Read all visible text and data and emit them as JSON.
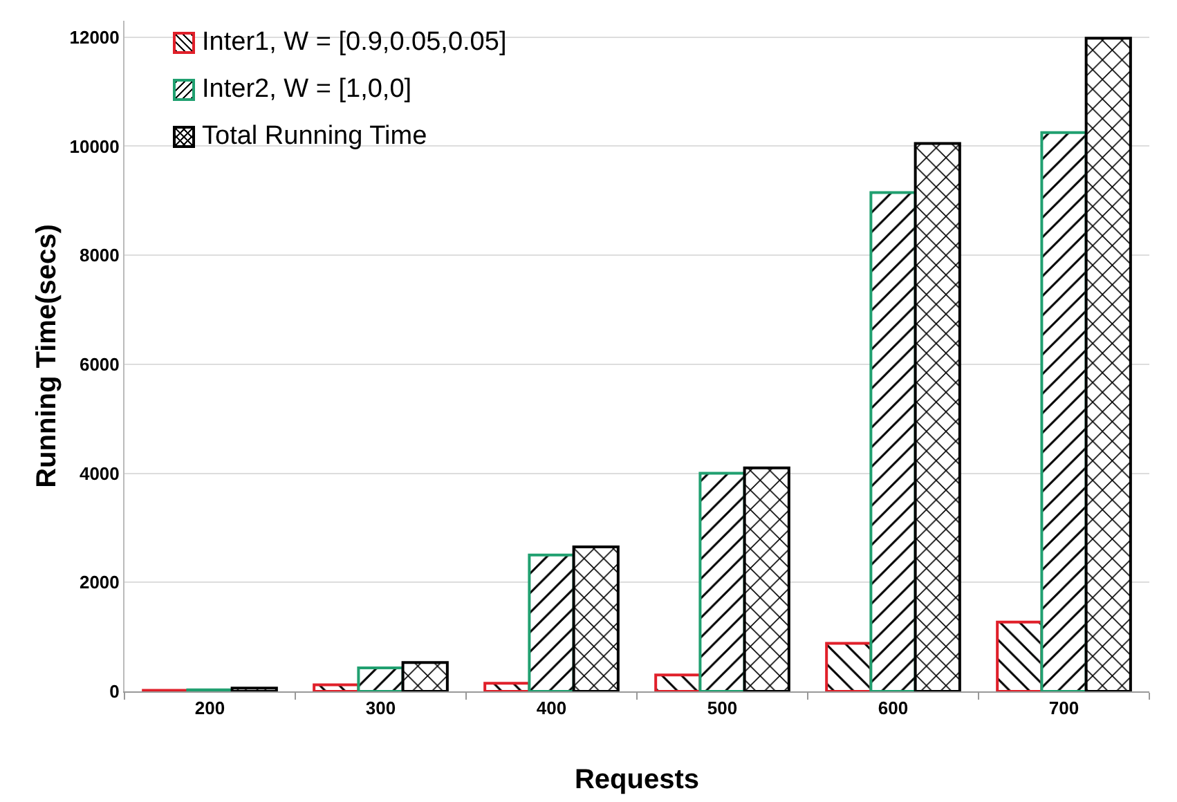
{
  "chart_data": {
    "type": "bar",
    "xlabel": "Requests",
    "ylabel": "Running Time(secs)",
    "categories": [
      "200",
      "300",
      "400",
      "500",
      "600",
      "700"
    ],
    "series": [
      {
        "name": "Inter1, W = [0.9,0.05,0.05]",
        "color": "#e0202a",
        "values": [
          20,
          120,
          150,
          300,
          880,
          1270
        ]
      },
      {
        "name": "Inter2, W = [1,0,0]",
        "color": "#20a070",
        "values": [
          30,
          430,
          2500,
          4000,
          9150,
          10250
        ]
      },
      {
        "name": "Total Running Time",
        "color": "#000000",
        "values": [
          60,
          530,
          2650,
          4100,
          10050,
          11980
        ]
      }
    ],
    "ylim": [
      0,
      12300
    ],
    "yticks": [
      0,
      2000,
      4000,
      6000,
      8000,
      10000,
      12000
    ],
    "grid": "y",
    "legend": "top left"
  }
}
